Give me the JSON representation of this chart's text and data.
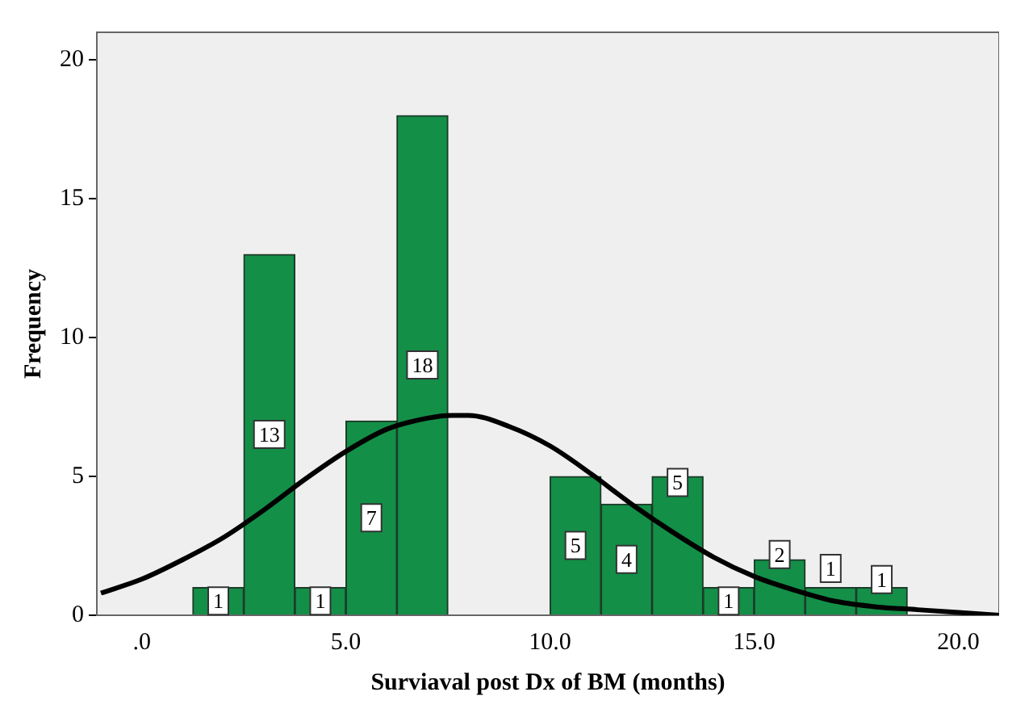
{
  "chart_data": {
    "type": "histogram",
    "xlabel": "Surviaval post Dx of BM (months)",
    "ylabel": "Frequency",
    "bins": [
      1.25,
      2.5,
      3.75,
      5,
      6.25,
      7.5,
      8.75,
      10,
      11.25,
      12.5,
      13.75,
      15,
      16.25,
      17.5,
      18.75
    ],
    "values": [
      1,
      13,
      1,
      7,
      18,
      0,
      0,
      5,
      4,
      5,
      1,
      2,
      1,
      1
    ],
    "value_labels": [
      "1",
      "13",
      "1",
      "7",
      "18",
      null,
      null,
      "5",
      "4",
      "5",
      "1",
      "2",
      "1",
      "1"
    ],
    "color": "#138f48",
    "series": [
      {
        "type": "line",
        "color": "#000000",
        "x": [
          -1,
          0,
          1,
          2,
          3,
          4,
          5,
          6,
          7,
          7.6,
          8,
          9,
          10,
          11,
          12,
          13,
          14,
          15,
          16,
          17,
          18,
          19,
          20,
          21
        ],
        "values": [
          0.8,
          1.3,
          2.0,
          2.8,
          3.8,
          4.9,
          5.9,
          6.7,
          7.1,
          7.2,
          7.2,
          6.8,
          6.1,
          5.1,
          4.0,
          3.0,
          2.1,
          1.4,
          0.9,
          0.5,
          0.3,
          0.2,
          0.1,
          0.0
        ]
      }
    ],
    "xlim": [
      -1.1,
      21
    ],
    "xticks": [
      {
        "value": 0,
        "label": ".0"
      },
      {
        "value": 5,
        "label": "5.0"
      },
      {
        "value": 10,
        "label": "10.0"
      },
      {
        "value": 15,
        "label": "15.0"
      },
      {
        "value": 20,
        "label": "20.0"
      }
    ],
    "ylim": [
      0,
      21
    ],
    "yticks": [
      0,
      5,
      10,
      15,
      20
    ],
    "grid": false,
    "legend": false
  }
}
